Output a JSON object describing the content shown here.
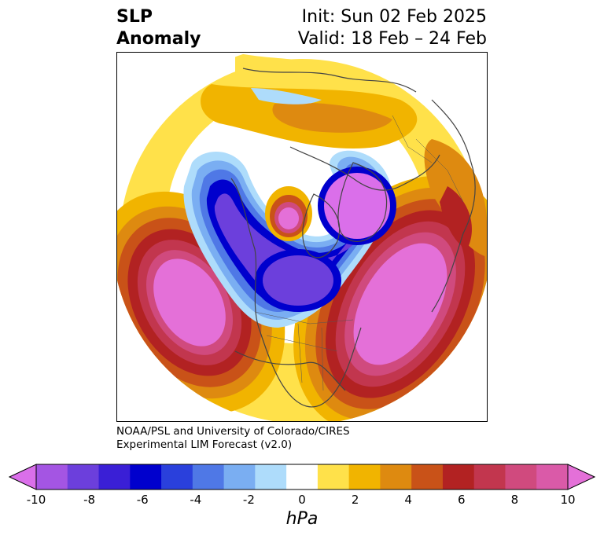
{
  "title": {
    "left_line1": "SLP",
    "left_line2": "Anomaly",
    "right_line1": "Init: Sun 02 Feb 2025",
    "right_line2": "Valid: 18 Feb – 24 Feb"
  },
  "credit": {
    "line1": "NOAA/PSL and University of Colorado/CIRES",
    "line2": "Experimental LIM Forecast (v2.0)"
  },
  "colorbar": {
    "unit": "hPa",
    "ticks": [
      "-10",
      "-8",
      "-6",
      "-4",
      "-2",
      "0",
      "2",
      "4",
      "6",
      "8",
      "10"
    ],
    "colors": [
      "#da6fea",
      "#a455e3",
      "#6c3fdc",
      "#3a1fd6",
      "#0000cd",
      "#2a40dc",
      "#4f78e6",
      "#7aaef2",
      "#aedcfb",
      "#ffffff",
      "#ffe14a",
      "#f1b400",
      "#de8a10",
      "#c95218",
      "#b22222",
      "#c2364e",
      "#d04a7e",
      "#da5aa8",
      "#e470d8"
    ]
  },
  "map": {
    "anomalies": [
      {
        "name": "negative-trough",
        "level": "-10 hPa"
      },
      {
        "name": "north-pacific-high",
        "level": "10 hPa"
      },
      {
        "name": "north-atlantic-high",
        "level": "10 hPa"
      },
      {
        "name": "hudson-bay-high",
        "level": "10 hPa"
      }
    ]
  }
}
